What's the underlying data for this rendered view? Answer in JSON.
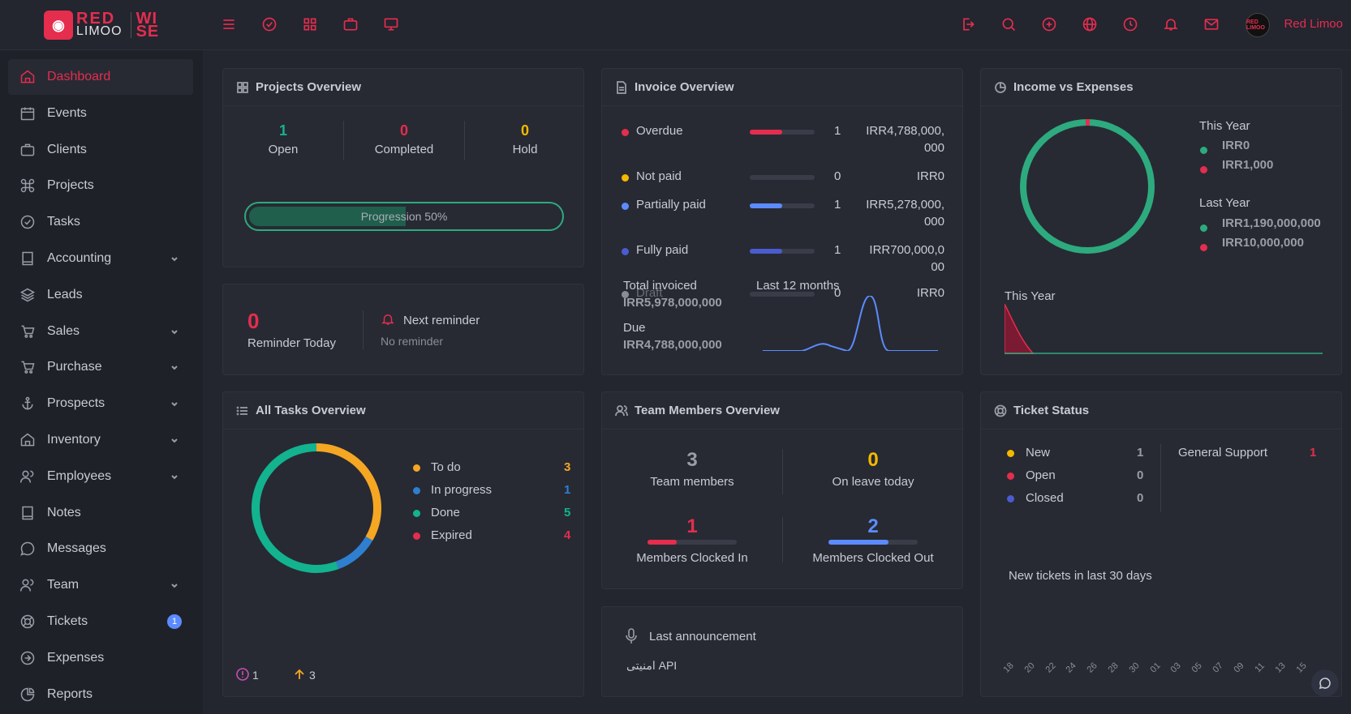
{
  "brand": {
    "logo_line1": "RED",
    "logo_line2": "LIMOO",
    "logo_wise1": "WI",
    "logo_wise2": "SE",
    "accent": "#e52d4e"
  },
  "topbar": {
    "left_icons": [
      "menu-icon",
      "check-circle-icon",
      "grid-icon",
      "briefcase-icon",
      "monitor-icon"
    ],
    "right_icons": [
      "logout-icon",
      "search-icon",
      "plus-circle-icon",
      "globe-icon",
      "clock-icon",
      "bell-icon",
      "mail-icon"
    ],
    "avatar_text": "RED LIMOO",
    "username": "Red Limoo"
  },
  "sidebar": {
    "items": [
      {
        "label": "Dashboard",
        "icon": "home-icon",
        "active": true
      },
      {
        "label": "Events",
        "icon": "calendar-icon"
      },
      {
        "label": "Clients",
        "icon": "briefcase-icon"
      },
      {
        "label": "Projects",
        "icon": "command-icon"
      },
      {
        "label": "Tasks",
        "icon": "check-circle-icon"
      },
      {
        "label": "Accounting",
        "icon": "book-icon",
        "chevron": true
      },
      {
        "label": "Leads",
        "icon": "layers-icon"
      },
      {
        "label": "Sales",
        "icon": "cart-icon",
        "chevron": true
      },
      {
        "label": "Purchase",
        "icon": "cart-icon",
        "chevron": true
      },
      {
        "label": "Prospects",
        "icon": "anchor-icon",
        "chevron": true
      },
      {
        "label": "Inventory",
        "icon": "home-icon",
        "chevron": true
      },
      {
        "label": "Employees",
        "icon": "users-icon",
        "chevron": true
      },
      {
        "label": "Notes",
        "icon": "book-icon"
      },
      {
        "label": "Messages",
        "icon": "message-icon"
      },
      {
        "label": "Team",
        "icon": "users-icon",
        "chevron": true
      },
      {
        "label": "Tickets",
        "icon": "lifebuoy-icon",
        "badge": "1"
      },
      {
        "label": "Expenses",
        "icon": "arrow-circle-icon"
      },
      {
        "label": "Reports",
        "icon": "pie-icon"
      }
    ]
  },
  "projects": {
    "title": "Projects Overview",
    "open_value": "1",
    "open_label": "Open",
    "completed_value": "0",
    "completed_label": "Completed",
    "hold_value": "0",
    "hold_label": "Hold",
    "progress_label": "Progression 50%",
    "progress": 0.5
  },
  "reminder": {
    "value": "0",
    "label": "Reminder Today",
    "next_label": "Next reminder",
    "none_label": "No reminder"
  },
  "invoice": {
    "title": "Invoice Overview",
    "rows": [
      {
        "label": "Overdue",
        "color": "#e52d4e",
        "count": "1",
        "amount1": "IRR4,788,000,",
        "amount2": "000",
        "fill": 0.5
      },
      {
        "label": "Not paid",
        "color": "#f5b800",
        "count": "0",
        "amount1": "IRR0",
        "amount2": "",
        "fill": 0
      },
      {
        "label": "Partially paid",
        "color": "#5c8bff",
        "count": "1",
        "amount1": "IRR5,278,000,",
        "amount2": "000",
        "fill": 0.5
      },
      {
        "label": "Fully paid",
        "color": "#4a5ccf",
        "count": "1",
        "amount1": "IRR700,000,0",
        "amount2": "00",
        "fill": 0.5
      },
      {
        "label": "Draft",
        "color": "#8a8d97",
        "count": "0",
        "amount1": "IRR0",
        "amount2": "",
        "fill": 0
      }
    ],
    "total_label": "Total invoiced",
    "total_value": "IRR5,978,000,000",
    "due_label": "Due",
    "due_value": "IRR4,788,000,000",
    "chart_label": "Last 12 months"
  },
  "income": {
    "title": "Income vs Expenses",
    "this_year_label": "This Year",
    "this_year_income": "IRR0",
    "this_year_expense": "IRR1,000",
    "last_year_label": "Last Year",
    "last_year_income": "IRR1,190,000,000",
    "last_year_expense": "IRR10,000,000",
    "chart_label": "This Year",
    "income_color": "#2eaa7f",
    "expense_color": "#e52d4e"
  },
  "tasks": {
    "title": "All Tasks Overview",
    "items": [
      {
        "label": "To do",
        "value": "3",
        "color": "#f5a623"
      },
      {
        "label": "In progress",
        "value": "1",
        "color": "#2f7fd1"
      },
      {
        "label": "Done",
        "value": "5",
        "color": "#13b38f"
      },
      {
        "label": "Expired",
        "value": "4",
        "color": "#e52d4e"
      }
    ],
    "footer_alert": "1",
    "footer_up": "3"
  },
  "team": {
    "title": "Team Members Overview",
    "members_value": "3",
    "members_label": "Team members",
    "leave_value": "0",
    "leave_label": "On leave today",
    "clocked_in_value": "1",
    "clocked_in_label": "Members Clocked In",
    "clocked_out_value": "2",
    "clocked_out_label": "Members Clocked Out"
  },
  "announcement": {
    "label": "Last announcement",
    "text": "امنیتی API"
  },
  "tickets": {
    "title": "Ticket Status",
    "rows": [
      {
        "label": "New",
        "value": "1",
        "color": "#f5b800"
      },
      {
        "label": "Open",
        "value": "0",
        "color": "#e52d4e"
      },
      {
        "label": "Closed",
        "value": "0",
        "color": "#4a5ccf"
      }
    ],
    "category": "General Support",
    "category_value": "1",
    "chart_label": "New tickets in last 30 days",
    "x_labels": [
      "18",
      "20",
      "22",
      "24",
      "26",
      "28",
      "30",
      "01",
      "03",
      "05",
      "07",
      "09",
      "11",
      "13",
      "15"
    ]
  }
}
